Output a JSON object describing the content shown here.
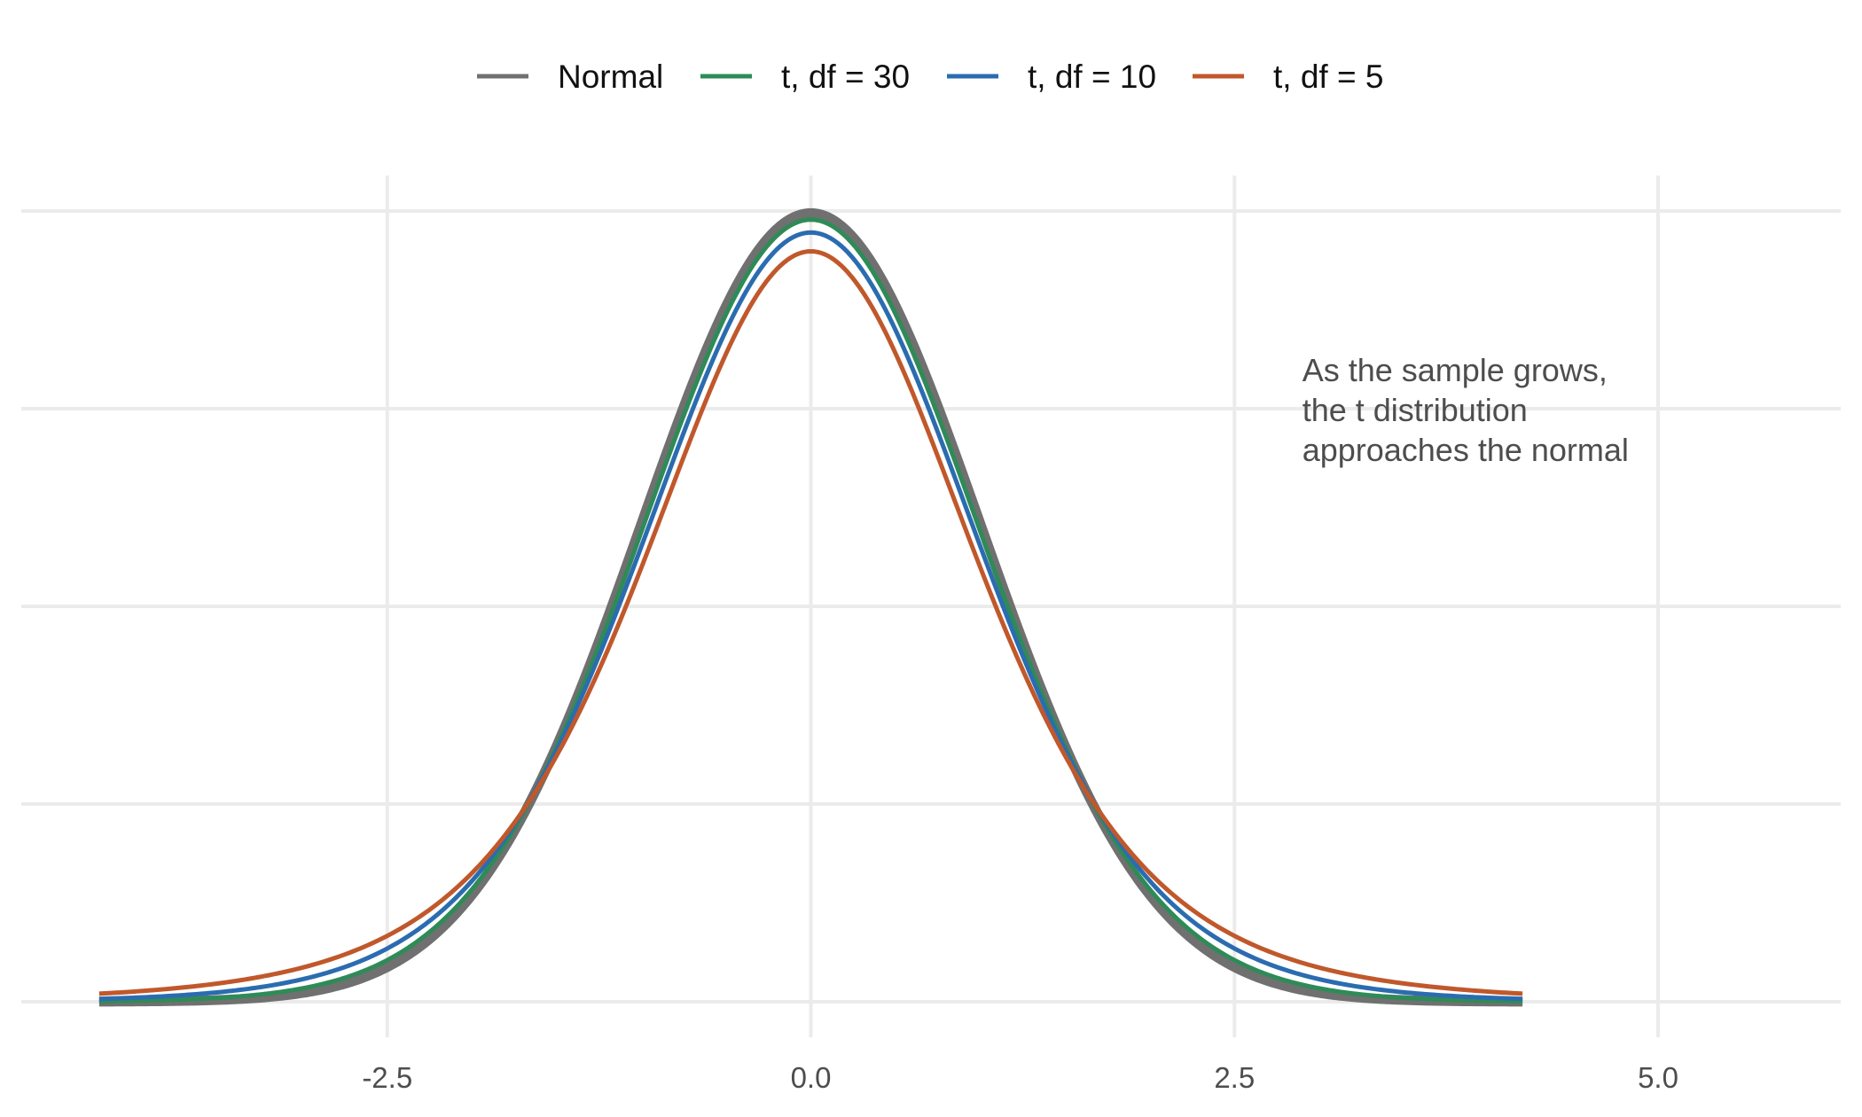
{
  "chart_data": {
    "type": "line",
    "title": "",
    "xlabel": "",
    "ylabel": "",
    "xlim": [
      -5,
      6.2
    ],
    "ylim": [
      0,
      0.4
    ],
    "x_ticks": [
      -2.5,
      0.0,
      2.5,
      5.0
    ],
    "x_tick_labels": [
      "-2.5",
      "0.0",
      "2.5",
      "5.0"
    ],
    "y_gridlines": [
      0,
      0.1,
      0.2,
      0.3,
      0.4
    ],
    "grid": true,
    "legend_position": "top",
    "x_range": [
      -4.2,
      4.2
    ],
    "series": [
      {
        "name": "Normal",
        "distribution": "normal",
        "df": null,
        "color": "#707070",
        "line_width": 11
      },
      {
        "name": "t, df = 30",
        "distribution": "t",
        "df": 30,
        "color": "#2e8b57",
        "line_width": 5
      },
      {
        "name": "t, df = 10",
        "distribution": "t",
        "df": 10,
        "color": "#2b6cb0",
        "line_width": 5
      },
      {
        "name": "t, df = 5",
        "distribution": "t",
        "df": 5,
        "color": "#c0582b",
        "line_width": 5
      }
    ],
    "annotation": {
      "lines": [
        "As the sample grows,",
        "the t distribution",
        "approaches the normal"
      ],
      "x": 2.9,
      "y": 0.3
    }
  }
}
